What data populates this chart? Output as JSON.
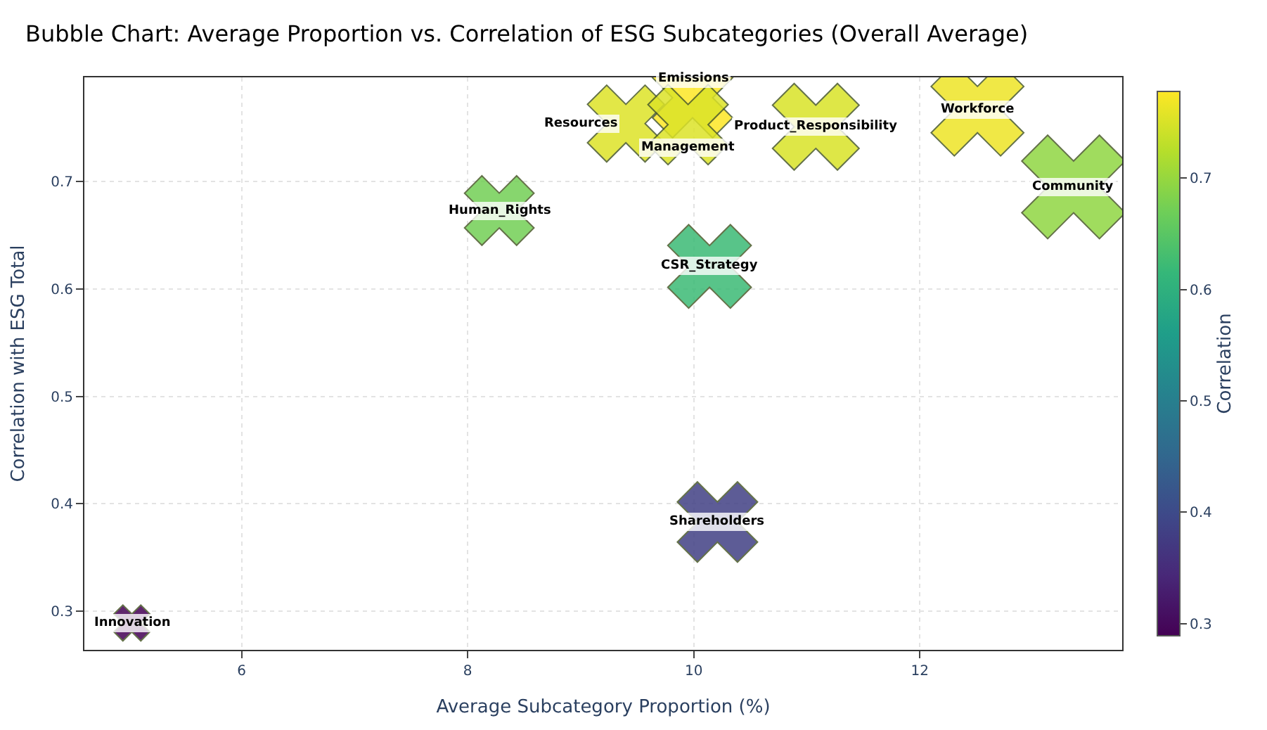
{
  "chart_data": {
    "type": "bubble",
    "title": "Bubble Chart: Average Proportion vs. Correlation of ESG Subcategories (Overall Average)",
    "xlabel": "Average Subcategory Proportion (%)",
    "ylabel": "Correlation with ESG Total",
    "clabel": "Correlation",
    "xlim": [
      4.61,
      13.79
    ],
    "ylim": [
      0.264,
      0.797
    ],
    "xticks": [
      6,
      8,
      10,
      12
    ],
    "yticks": [
      0.3,
      0.4,
      0.5,
      0.6,
      0.7
    ],
    "clim": [
      0.289,
      0.778
    ],
    "cticks": [
      0.3,
      0.4,
      0.5,
      0.6,
      0.7
    ],
    "grid": true,
    "legend": false,
    "marker": "cross",
    "series": [
      {
        "name": "Innovation",
        "x": [
          5.03
        ],
        "values": [
          0.289
        ],
        "cvalues": [
          0.289
        ],
        "sizes": [
          0.12
        ]
      },
      {
        "name": "Human_Rights",
        "x": [
          8.28
        ],
        "values": [
          0.673
        ],
        "cvalues": [
          0.673
        ],
        "sizes": [
          0.45
        ]
      },
      {
        "name": "CSR_Strategy",
        "x": [
          10.14
        ],
        "values": [
          0.621
        ],
        "cvalues": [
          0.621
        ],
        "sizes": [
          0.65
        ]
      },
      {
        "name": "Shareholders",
        "x": [
          10.21
        ],
        "values": [
          0.383
        ],
        "cvalues": [
          0.383
        ],
        "sizes": [
          0.6
        ]
      },
      {
        "name": "Emissions",
        "x": [
          9.99
        ],
        "values": [
          0.778
        ],
        "cvalues": [
          0.778
        ],
        "sizes": [
          0.6
        ]
      },
      {
        "name": "Resources",
        "x": [
          9.4
        ],
        "values": [
          0.754
        ],
        "cvalues": [
          0.754
        ],
        "sizes": [
          0.55
        ]
      },
      {
        "name": "Management",
        "x": [
          9.95
        ],
        "values": [
          0.753
        ],
        "cvalues": [
          0.753
        ],
        "sizes": [
          0.6
        ]
      },
      {
        "name": "Product_Responsibility",
        "x": [
          11.08
        ],
        "values": [
          0.751
        ],
        "cvalues": [
          0.751
        ],
        "sizes": [
          0.7
        ]
      },
      {
        "name": "Workforce",
        "x": [
          12.51
        ],
        "values": [
          0.767
        ],
        "cvalues": [
          0.767
        ],
        "sizes": [
          0.8
        ]
      },
      {
        "name": "Community",
        "x": [
          13.36
        ],
        "values": [
          0.695
        ],
        "cvalues": [
          0.695
        ],
        "sizes": [
          1.0
        ]
      }
    ]
  }
}
